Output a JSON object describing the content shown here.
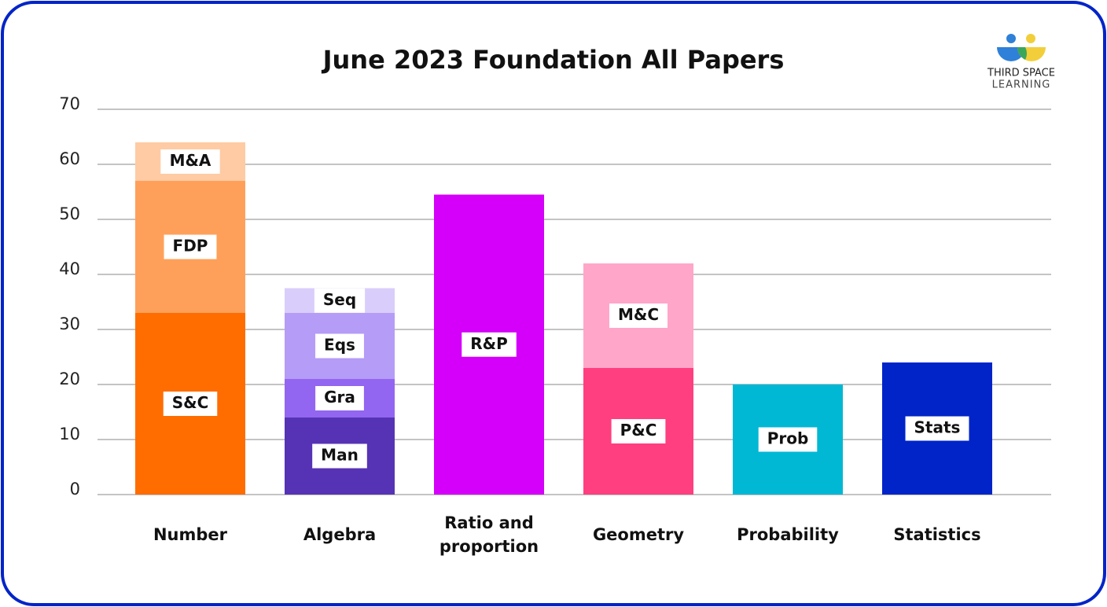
{
  "chart_data": {
    "type": "stacked-bar",
    "title": "June 2023 Foundation All Papers",
    "logo": {
      "line1": "THIRD SPACE",
      "line2": "LEARNING"
    },
    "categories": [
      "Number",
      "Algebra",
      "Ratio and proportion",
      "Geometry",
      "Probability",
      "Statistics"
    ],
    "stacks": [
      [
        {
          "label": "S&C",
          "value": 33,
          "color": "#ff6d00"
        },
        {
          "label": "FDP",
          "value": 24,
          "color": "#ffa05a"
        },
        {
          "label": "M&A",
          "value": 7,
          "color": "#ffcba4"
        }
      ],
      [
        {
          "label": "Man",
          "value": 14,
          "color": "#5633b5"
        },
        {
          "label": "Gra",
          "value": 7,
          "color": "#9266f0"
        },
        {
          "label": "Eqs",
          "value": 12,
          "color": "#b59cf7"
        },
        {
          "label": "Seq",
          "value": 4.5,
          "color": "#d9cdfc"
        }
      ],
      [
        {
          "label": "R&P",
          "value": 54.5,
          "color": "#d500f9"
        }
      ],
      [
        {
          "label": "P&C",
          "value": 23,
          "color": "#ff3f7f"
        },
        {
          "label": "M&C",
          "value": 19,
          "color": "#ffa6c9"
        }
      ],
      [
        {
          "label": "Prob",
          "value": 20,
          "color": "#00b8d4"
        }
      ],
      [
        {
          "label": "Stats",
          "value": 24,
          "color": "#0024c8"
        }
      ]
    ],
    "ylim": [
      0,
      70
    ],
    "yticks": [
      0,
      10,
      20,
      30,
      40,
      50,
      60,
      70
    ],
    "grid": true
  }
}
